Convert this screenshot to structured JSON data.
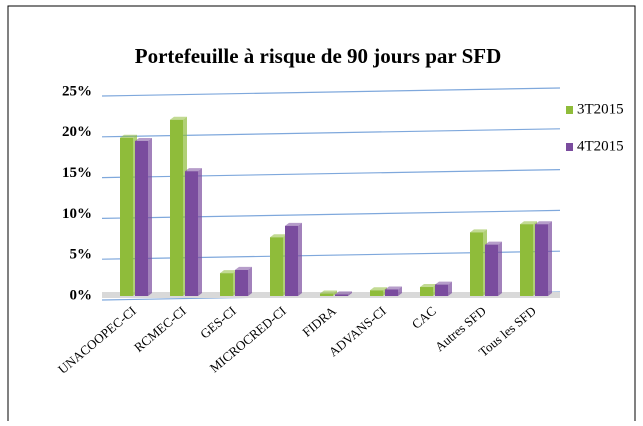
{
  "chart_data": {
    "type": "bar",
    "title": "Portefeuille à risque de 90 jours par SFD",
    "categories": [
      "UNACOOPEC-CI",
      "RCMEC-CI",
      "GES-CI",
      "MICROCRED-CI",
      "FIDRA",
      "ADVANS-CI",
      "CAC",
      "Autres SFD",
      "Tous les SFD"
    ],
    "series": [
      {
        "name": "3T2015",
        "color": "#8fbc3a",
        "values": [
          19.4,
          21.6,
          2.8,
          7.2,
          0.3,
          0.7,
          1.1,
          7.8,
          8.8
        ]
      },
      {
        "name": "4T2015",
        "color": "#7a4c9e",
        "values": [
          19.0,
          15.3,
          3.2,
          8.6,
          0.2,
          0.8,
          1.4,
          6.3,
          8.8
        ]
      }
    ],
    "ylim": [
      0,
      25
    ],
    "yticks": [
      {
        "value": 0,
        "label": "0%"
      },
      {
        "value": 5,
        "label": "5%"
      },
      {
        "value": 10,
        "label": "10%"
      },
      {
        "value": 15,
        "label": "15%"
      },
      {
        "value": 20,
        "label": "20%"
      },
      {
        "value": 25,
        "label": "25%"
      }
    ],
    "grid": true,
    "legend": "right"
  }
}
